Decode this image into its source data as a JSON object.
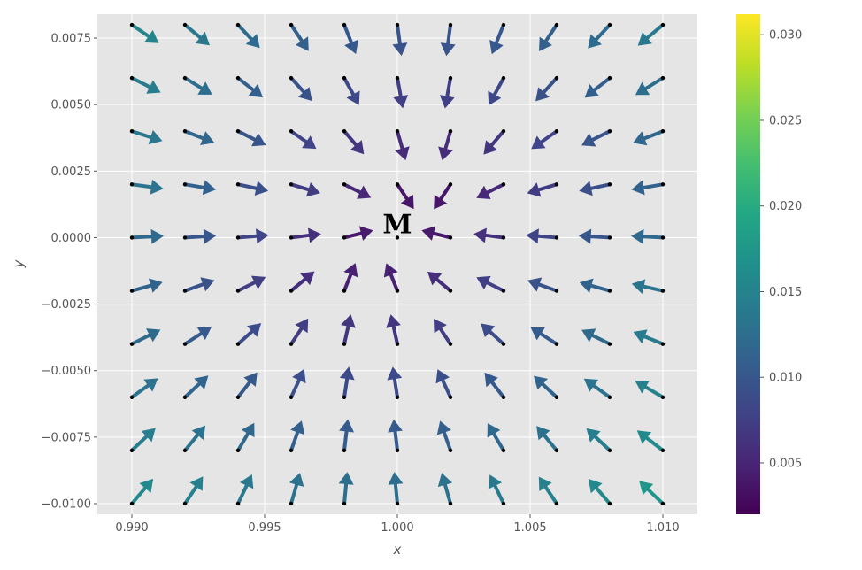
{
  "chart_data": {
    "type": "quiver",
    "title": "",
    "xlabel": "x",
    "ylabel": "y",
    "xlim": [
      0.9887,
      1.0113
    ],
    "ylim": [
      -0.0104,
      0.0084
    ],
    "grid": true,
    "background": "#e5e5e5",
    "grid_color": "#ffffff",
    "x_ticks": [
      {
        "value": 0.99,
        "label": "0.990"
      },
      {
        "value": 0.995,
        "label": "0.995"
      },
      {
        "value": 1.0,
        "label": "1.000"
      },
      {
        "value": 1.005,
        "label": "1.005"
      },
      {
        "value": 1.01,
        "label": "1.010"
      }
    ],
    "y_ticks": [
      {
        "value": 0.0075,
        "label": "0.0075"
      },
      {
        "value": 0.005,
        "label": "0.0050"
      },
      {
        "value": 0.0025,
        "label": "0.0025"
      },
      {
        "value": 0.0,
        "label": "0.0000"
      },
      {
        "value": -0.0025,
        "label": "−0.0025"
      },
      {
        "value": -0.005,
        "label": "−0.0050"
      },
      {
        "value": -0.0075,
        "label": "−0.0075"
      },
      {
        "value": -0.01,
        "label": "−0.0100"
      }
    ],
    "grid_x": [
      0.99,
      0.992,
      0.994,
      0.996,
      0.998,
      1.0,
      1.002,
      1.004,
      1.006,
      1.008,
      1.01
    ],
    "grid_y": [
      0.008,
      0.006,
      0.004,
      0.002,
      0.0,
      -0.002,
      -0.004,
      -0.006,
      -0.008,
      -0.01
    ],
    "field": {
      "center": [
        1.0,
        0.0
      ],
      "rotation": 0.0005,
      "shear": 0.001,
      "magnitude_shift": 0.002
    },
    "colormap": "viridis",
    "colorbar": {
      "range": [
        0.002,
        0.0312
      ],
      "ticks": [
        {
          "value": 0.005,
          "label": "0.005"
        },
        {
          "value": 0.01,
          "label": "0.010"
        },
        {
          "value": 0.015,
          "label": "0.015"
        },
        {
          "value": 0.02,
          "label": "0.020"
        },
        {
          "value": 0.025,
          "label": "0.025"
        },
        {
          "value": 0.03,
          "label": "0.030"
        }
      ]
    },
    "annotations": [
      {
        "text": "M",
        "x": 1.0,
        "y": 0.0
      }
    ]
  }
}
